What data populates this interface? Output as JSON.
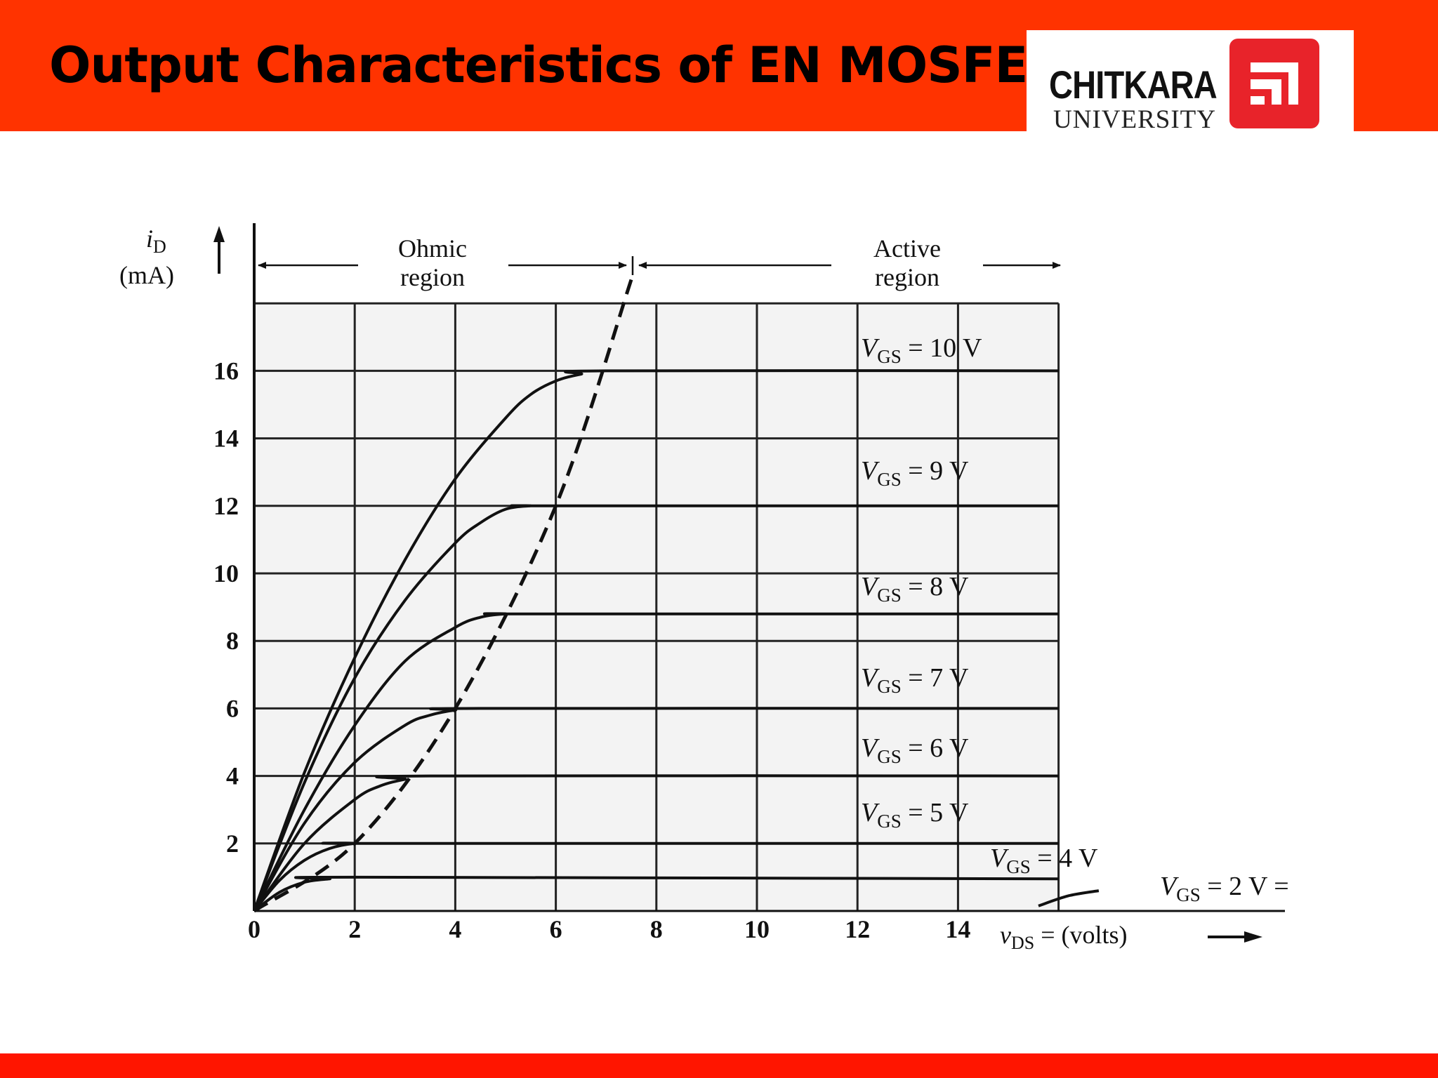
{
  "slide": {
    "title": "Output Characteristics of EN MOSFET",
    "header_color": "#ff3300",
    "footer_color": "#ff1500"
  },
  "logo": {
    "name": "CHITKARA",
    "sub": "UNIVERSITY",
    "emblem_color": "#e8232a"
  },
  "chart_data": {
    "type": "line",
    "title": "",
    "xlabel_var": "v",
    "xlabel_sub": "DS",
    "xlabel_rest": " = (volts)",
    "ylabel_var": "i",
    "ylabel_sub": "D",
    "ylabel_unit": "(mA)",
    "xlim": [
      0,
      16
    ],
    "ylim": [
      0,
      18
    ],
    "x_ticks": [
      "0",
      "2",
      "4",
      "6",
      "8",
      "10",
      "12",
      "14"
    ],
    "y_ticks": [
      "2",
      "4",
      "6",
      "8",
      "10",
      "12",
      "14",
      "16"
    ],
    "grid": true,
    "regions": [
      {
        "name_line1": "Ohmic",
        "name_line2": "region"
      },
      {
        "name_line1": "Active",
        "name_line2": "region"
      }
    ],
    "series": [
      {
        "name": "VGS = 10 V",
        "label_var": "V",
        "label_sub": "GS",
        "label_rest": " = 10 V",
        "x": [
          0,
          1,
          2,
          3,
          4,
          5,
          5.5,
          6,
          6.5,
          7,
          16
        ],
        "y": [
          0,
          4.1,
          7.5,
          10.4,
          12.8,
          14.6,
          15.3,
          15.7,
          15.9,
          16,
          16
        ]
      },
      {
        "name": "VGS = 9 V",
        "label_var": "V",
        "label_sub": "GS",
        "label_rest": " = 9 V",
        "x": [
          0,
          1,
          2,
          3,
          4,
          4.5,
          5,
          5.5,
          6,
          16
        ],
        "y": [
          0,
          3.8,
          6.9,
          9.2,
          10.9,
          11.5,
          11.9,
          12,
          12,
          12
        ]
      },
      {
        "name": "VGS = 8 V",
        "label_var": "V",
        "label_sub": "GS",
        "label_rest": " = 8 V",
        "x": [
          0,
          1,
          2,
          3,
          4,
          4.5,
          5,
          5.5,
          16
        ],
        "y": [
          0,
          3,
          5.5,
          7.4,
          8.4,
          8.7,
          8.8,
          8.8,
          8.8
        ]
      },
      {
        "name": "VGS = 7 V",
        "label_var": "V",
        "label_sub": "GS",
        "label_rest": " = 7 V",
        "x": [
          0,
          1,
          2,
          3,
          3.5,
          4,
          4.5,
          16
        ],
        "y": [
          0,
          2.6,
          4.4,
          5.5,
          5.8,
          5.95,
          6,
          6
        ]
      },
      {
        "name": "VGS = 6 V",
        "label_var": "V",
        "label_sub": "GS",
        "label_rest": " = 6 V",
        "x": [
          0,
          1,
          2,
          2.5,
          3,
          3.5,
          16
        ],
        "y": [
          0,
          2,
          3.3,
          3.7,
          3.9,
          4,
          4
        ]
      },
      {
        "name": "VGS = 5 V",
        "label_var": "V",
        "label_sub": "GS",
        "label_rest": " = 5 V",
        "x": [
          0,
          0.5,
          1,
          1.5,
          2,
          2.5,
          16
        ],
        "y": [
          0,
          0.9,
          1.5,
          1.85,
          2,
          2,
          2
        ]
      },
      {
        "name": "VGS = 4 V",
        "label_var": "V",
        "label_sub": "GS",
        "label_rest": " = 4 V",
        "x": [
          0,
          0.5,
          1,
          1.5,
          2,
          16
        ],
        "y": [
          0,
          0.55,
          0.85,
          0.95,
          1,
          0.95
        ]
      },
      {
        "name": "VGS = 2 V",
        "label_var": "V",
        "label_sub": "GS",
        "label_rest": " = 2 V = ",
        "x": [
          15.6,
          16.2,
          16.8
        ],
        "y": [
          0.15,
          0.45,
          0.6
        ]
      }
    ],
    "boundary": {
      "style": "dashed",
      "x": [
        0,
        2,
        4,
        6,
        7.5
      ],
      "y": [
        0,
        2,
        6,
        12,
        18.7
      ]
    }
  }
}
